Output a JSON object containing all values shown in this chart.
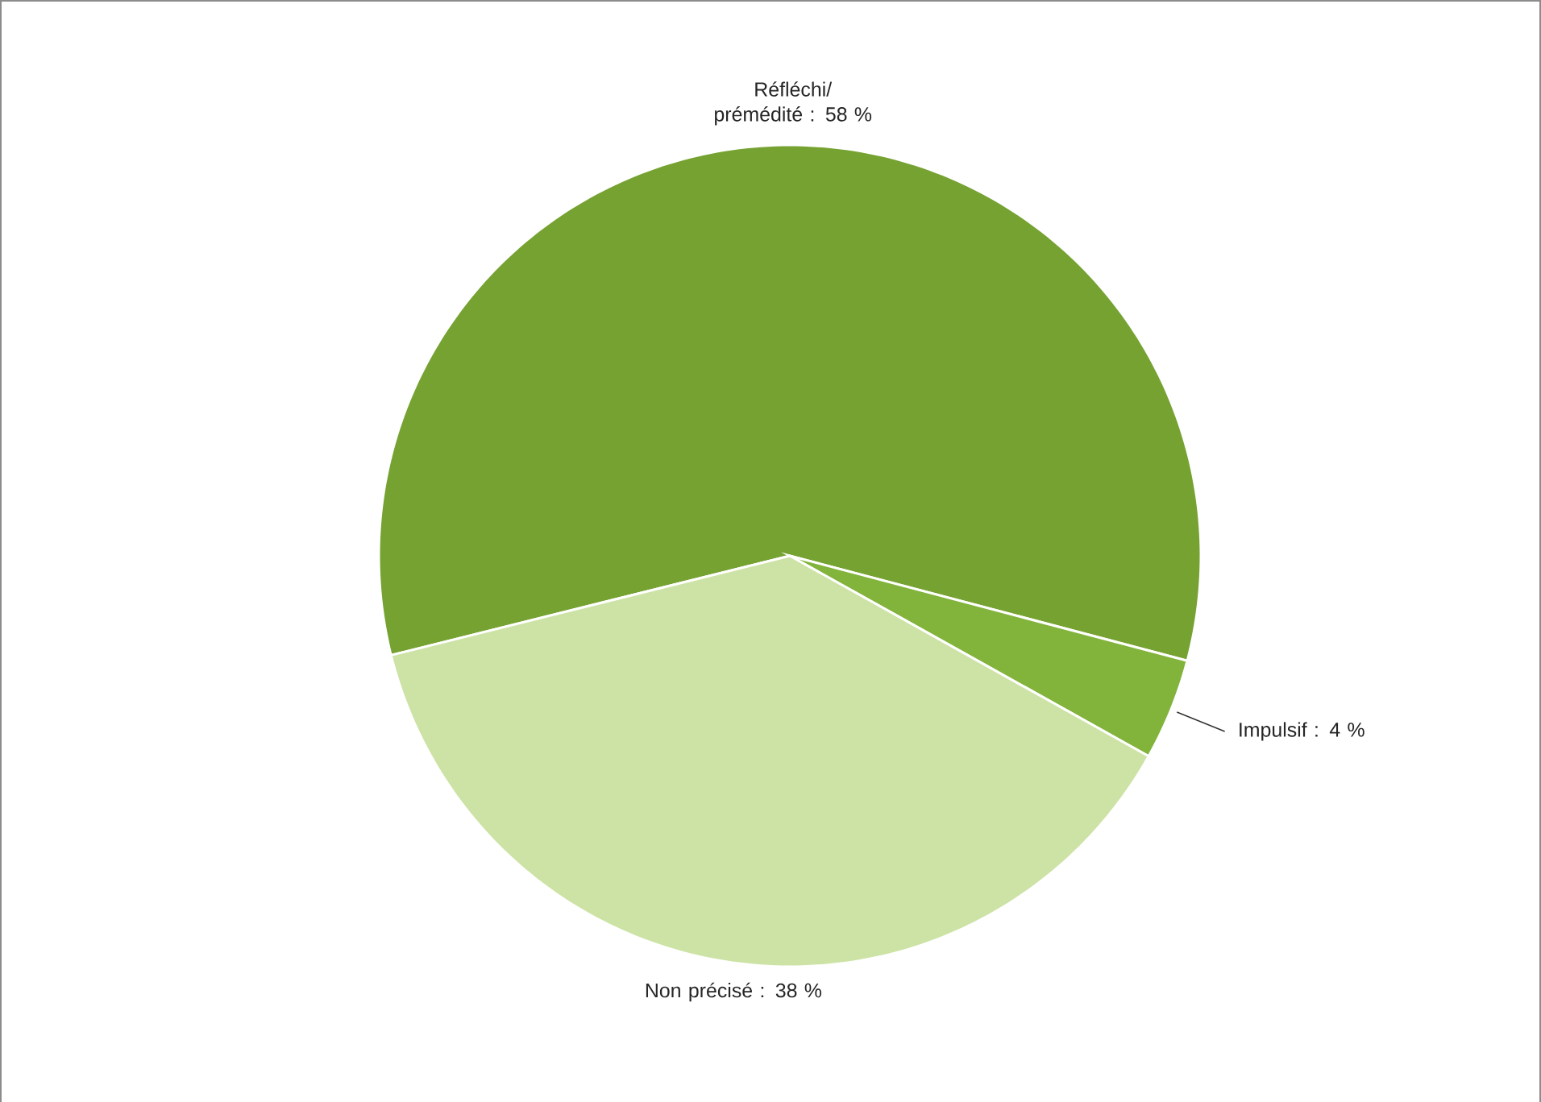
{
  "chart_data": {
    "type": "pie",
    "categories": [
      "Réfléchi/ prémédité",
      "Impulsif",
      "Non précisé"
    ],
    "values": [
      58,
      4,
      38
    ],
    "value_labels": [
      ": 58 %",
      ": 4 %",
      ": 38 %"
    ],
    "colors": [
      "#76a232",
      "#82b43c",
      "#cde3a6"
    ]
  }
}
